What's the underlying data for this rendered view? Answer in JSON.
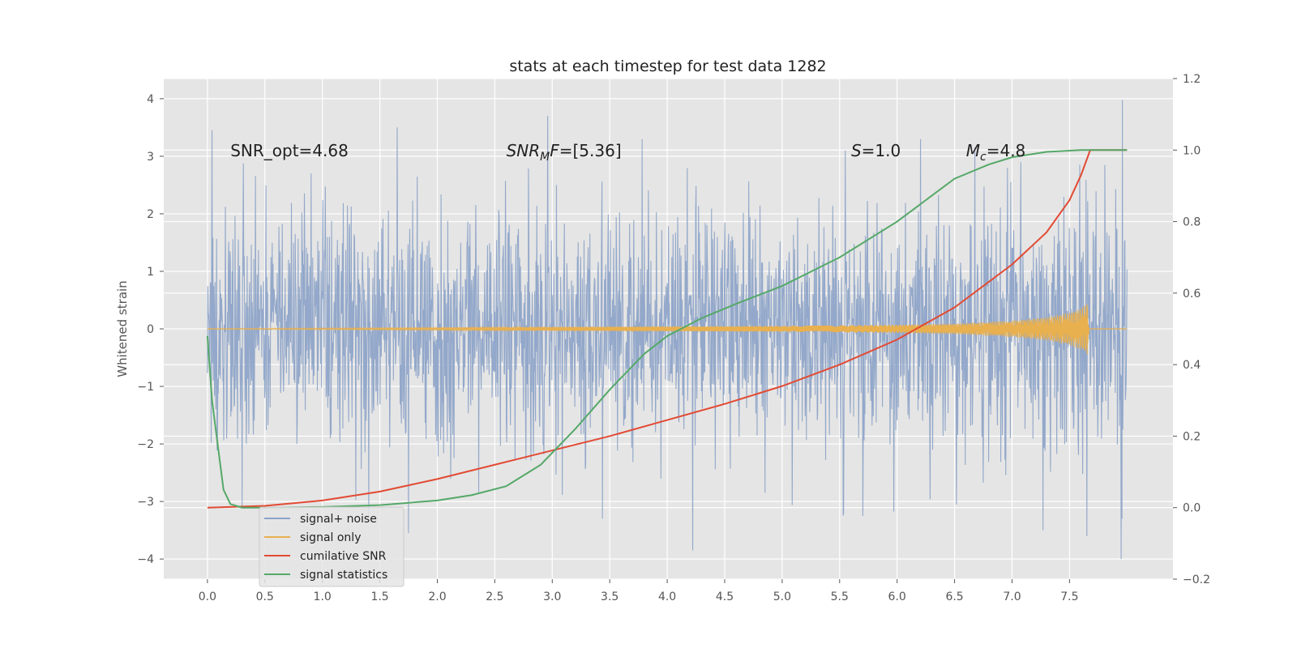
{
  "chart_data": {
    "type": "line",
    "title": "stats at each timestep for test data 1282",
    "ylabel": "Whitened strain",
    "xlabel": "",
    "xlim": [
      -0.38,
      8.4
    ],
    "ylim": [
      -4.35,
      4.35
    ],
    "y2lim": [
      -0.2,
      1.2
    ],
    "x_ticks": [
      "0.0",
      "0.5",
      "1.0",
      "1.5",
      "2.0",
      "2.5",
      "3.0",
      "3.5",
      "4.0",
      "4.5",
      "5.0",
      "5.5",
      "6.0",
      "6.5",
      "7.0",
      "7.5"
    ],
    "x_tick_values": [
      0,
      0.5,
      1,
      1.5,
      2,
      2.5,
      3,
      3.5,
      4,
      4.5,
      5,
      5.5,
      6,
      6.5,
      7,
      7.5
    ],
    "y_ticks": [
      "4",
      "3",
      "2",
      "1",
      "0",
      "−1",
      "−2",
      "−3",
      "−4"
    ],
    "y_tick_values": [
      4,
      3,
      2,
      1,
      0,
      -1,
      -2,
      -3,
      -4
    ],
    "y2_ticks": [
      "1.2",
      "1.0",
      "0.8",
      "0.6",
      "0.4",
      "0.2",
      "0.0",
      "−0.2"
    ],
    "y2_tick_values": [
      1.2,
      1.0,
      0.8,
      0.6,
      0.4,
      0.2,
      0.0,
      -0.2
    ],
    "grid": true,
    "legend_position": "lower-left",
    "annotations": [
      {
        "text": "SNR_opt=4.68",
        "x": 0.2,
        "y": 3.1
      },
      {
        "main": "SNR",
        "sub": "M",
        "tail": "F=[5.36]",
        "x": 2.6,
        "y": 3.1
      },
      {
        "main": "S",
        "tail": "=1.0",
        "x": 5.6,
        "y": 3.1
      },
      {
        "main": "M",
        "sub": "c",
        "tail": "=4.8",
        "x": 6.6,
        "y": 3.1
      }
    ],
    "series": [
      {
        "name": "signal+ noise",
        "color": "#8ea4c8",
        "axis": "left",
        "x_range": [
          0,
          8.0
        ],
        "noise_std": 1.0,
        "peaks_high": [
          [
            0.04,
            3.45
          ],
          [
            0.9,
            2.7
          ],
          [
            1.65,
            3.5
          ],
          [
            2.96,
            3.7
          ],
          [
            3.78,
            3.3
          ],
          [
            5.55,
            3.1
          ],
          [
            7.96,
            3.98
          ]
        ],
        "peaks_low": [
          [
            0.3,
            -3.1
          ],
          [
            1.75,
            -3.55
          ],
          [
            4.22,
            -3.85
          ],
          [
            5.7,
            -3.25
          ],
          [
            7.27,
            -3.5
          ],
          [
            7.65,
            -3.6
          ],
          [
            7.95,
            -4.0
          ]
        ]
      },
      {
        "name": "signal only",
        "color": "#e8b04f",
        "axis": "left",
        "amplitude_points": [
          [
            0,
            0.005
          ],
          [
            2,
            0.02
          ],
          [
            3,
            0.03
          ],
          [
            4,
            0.04
          ],
          [
            5,
            0.05
          ],
          [
            6,
            0.07
          ],
          [
            6.5,
            0.09
          ],
          [
            7,
            0.14
          ],
          [
            7.3,
            0.2
          ],
          [
            7.5,
            0.28
          ],
          [
            7.62,
            0.38
          ],
          [
            7.66,
            0.46
          ],
          [
            7.67,
            0.0
          ],
          [
            8.0,
            0.0
          ]
        ]
      },
      {
        "name": "cumilative SNR",
        "color": "#e24a33",
        "axis": "right",
        "x": [
          0,
          0.5,
          1.0,
          1.5,
          2.0,
          2.5,
          3.0,
          3.5,
          4.0,
          4.5,
          5.0,
          5.5,
          6.0,
          6.5,
          7.0,
          7.3,
          7.5,
          7.6,
          7.68,
          8.0
        ],
        "y": [
          0.0,
          0.005,
          0.02,
          0.045,
          0.08,
          0.12,
          0.16,
          0.2,
          0.245,
          0.29,
          0.34,
          0.4,
          0.47,
          0.56,
          0.68,
          0.77,
          0.86,
          0.93,
          1.0,
          1.0
        ]
      },
      {
        "name": "signal statistics",
        "color": "#55a868",
        "axis": "right",
        "x": [
          0,
          0.04,
          0.1,
          0.14,
          0.2,
          0.3,
          0.5,
          1.0,
          1.5,
          2.0,
          2.3,
          2.6,
          2.9,
          3.2,
          3.5,
          3.8,
          4.0,
          4.3,
          4.6,
          5.0,
          5.5,
          6.0,
          6.5,
          6.8,
          7.0,
          7.3,
          7.6,
          7.68,
          8.0
        ],
        "y": [
          0.48,
          0.3,
          0.15,
          0.05,
          0.01,
          0.0,
          0.0,
          0.002,
          0.007,
          0.02,
          0.035,
          0.06,
          0.12,
          0.22,
          0.33,
          0.43,
          0.48,
          0.53,
          0.57,
          0.62,
          0.7,
          0.8,
          0.92,
          0.96,
          0.98,
          0.995,
          1.0,
          1.0,
          1.0
        ]
      }
    ]
  }
}
